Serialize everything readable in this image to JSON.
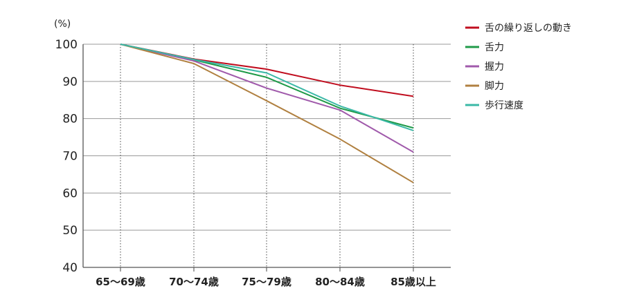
{
  "chart_data": {
    "type": "line",
    "y_unit_label": "(%)",
    "categories": [
      "65〜69歳",
      "70〜74歳",
      "75〜79歳",
      "80〜84歳",
      "85歳以上"
    ],
    "ylim": [
      40,
      100
    ],
    "yticks": [
      40,
      50,
      60,
      70,
      80,
      90,
      100
    ],
    "grid": "horizontal solid, vertical dotted",
    "legend": "top-right",
    "series": [
      {
        "name": "舌の繰り返しの動き",
        "color": "#c00d1e",
        "values": [
          100,
          96,
          93.3,
          89,
          86
        ]
      },
      {
        "name": "舌力",
        "color": "#1f9a48",
        "values": [
          100,
          95.8,
          91.1,
          82.8,
          77.5
        ]
      },
      {
        "name": "握力",
        "color": "#a05aab",
        "values": [
          100,
          95.5,
          88.2,
          82.3,
          71
        ]
      },
      {
        "name": "脚力",
        "color": "#b08040",
        "values": [
          100,
          94.8,
          84.8,
          74.5,
          62.8
        ]
      },
      {
        "name": "歩行速度",
        "color": "#3ab8a6",
        "values": [
          100,
          95.9,
          92.3,
          83.4,
          76.8
        ]
      }
    ]
  }
}
